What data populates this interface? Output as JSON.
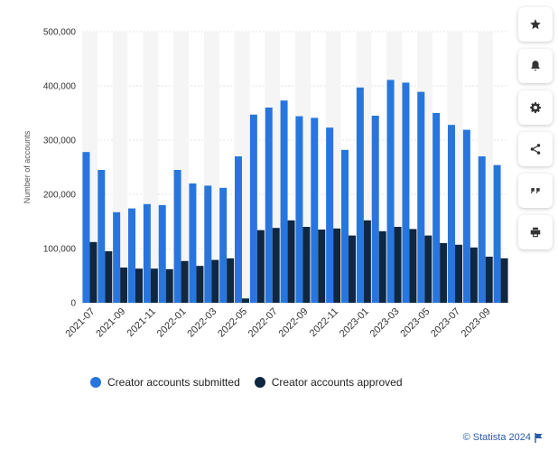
{
  "chart_data": {
    "type": "bar",
    "ylabel": "Number of accounts",
    "yticks": [
      "0",
      "100,000",
      "200,000",
      "300,000",
      "400,000",
      "500,000"
    ],
    "ylim": [
      0,
      500000
    ],
    "grid": true,
    "legend_position": "bottom",
    "categories": [
      "2021-07",
      "2021-08",
      "2021-09",
      "2021-10",
      "2021-11",
      "2021-12",
      "2022-01",
      "2022-02",
      "2022-03",
      "2022-04",
      "2022-05",
      "2022-06",
      "2022-07",
      "2022-08",
      "2022-09",
      "2022-10",
      "2022-11",
      "2022-12",
      "2023-01",
      "2023-02",
      "2023-03",
      "2023-04",
      "2023-05",
      "2023-06",
      "2023-07",
      "2023-08",
      "2023-09",
      "2023-10"
    ],
    "xtick_labels": [
      "2021-07",
      "2021-09",
      "2021-11",
      "2022-01",
      "2022-03",
      "2022-05",
      "2022-07",
      "2022-09",
      "2022-11",
      "2023-01",
      "2023-03",
      "2023-05",
      "2023-07",
      "2023-09"
    ],
    "series": [
      {
        "name": "Creator accounts submitted",
        "color": "#2876dd",
        "values": [
          278000,
          245000,
          167000,
          174000,
          182000,
          180000,
          245000,
          220000,
          216000,
          212000,
          270000,
          347000,
          360000,
          373000,
          344000,
          341000,
          323000,
          282000,
          397000,
          345000,
          411000,
          406000,
          389000,
          350000,
          328000,
          319000,
          270000,
          254000
        ]
      },
      {
        "name": "Creator accounts approved",
        "color": "#0f2740",
        "values": [
          112000,
          95000,
          65000,
          63000,
          63000,
          62000,
          77000,
          68000,
          79000,
          82000,
          8000,
          134000,
          138000,
          152000,
          140000,
          135000,
          137000,
          124000,
          152000,
          132000,
          140000,
          136000,
          124000,
          110000,
          107000,
          102000,
          85000,
          82000
        ]
      }
    ]
  },
  "sidebar": {
    "buttons": [
      {
        "name": "favorite-star-icon",
        "icon": "star"
      },
      {
        "name": "notification-bell-icon",
        "icon": "bell"
      },
      {
        "name": "settings-gear-icon",
        "icon": "gear"
      },
      {
        "name": "share-icon",
        "icon": "share"
      },
      {
        "name": "cite-quote-icon",
        "icon": "quote"
      },
      {
        "name": "print-icon",
        "icon": "print"
      }
    ]
  },
  "credit": {
    "text": "© Statista 2024"
  }
}
